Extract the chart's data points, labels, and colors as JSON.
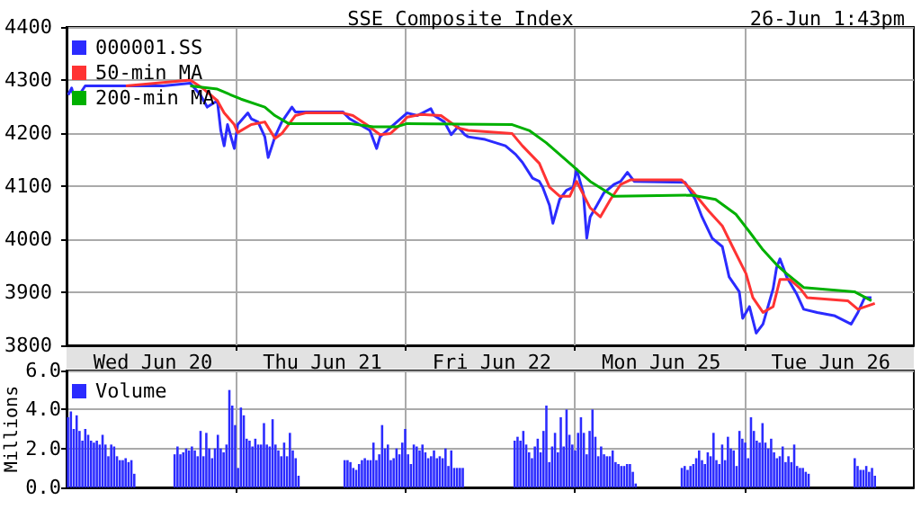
{
  "chart_data": [
    {
      "type": "line",
      "title": "SSE Composite Index",
      "subtitle": "26-Jun 1:43pm",
      "legend": "top left",
      "grid": true,
      "categories": [
        null,
        null,
        null,
        null,
        null,
        null,
        null,
        null,
        null,
        null,
        null,
        null,
        null,
        null,
        null,
        null,
        null,
        null,
        null,
        null,
        null,
        null,
        null,
        null,
        null,
        "Wed Jun 20",
        null,
        null,
        null,
        null,
        null,
        null,
        null,
        null,
        null,
        null,
        null,
        null,
        null,
        null,
        null,
        null,
        null,
        null,
        null,
        null,
        null,
        null,
        null,
        null,
        null,
        null,
        null,
        null,
        null,
        null,
        null,
        null,
        null,
        null,
        null,
        null,
        null,
        null,
        null,
        null,
        null,
        null,
        null,
        null,
        null,
        null,
        null,
        null,
        null,
        "Thu Jun 21",
        null,
        null,
        null,
        null,
        null,
        null,
        null,
        null,
        null,
        null,
        null,
        null,
        null,
        null,
        null,
        null,
        null,
        null,
        null,
        null,
        null,
        null,
        null,
        null,
        null,
        null,
        null,
        null,
        null,
        null,
        null,
        null,
        null,
        null,
        null,
        null,
        null,
        null,
        null,
        null,
        null,
        null,
        null,
        null,
        null,
        null,
        null,
        null,
        null,
        "Fri Jun 22",
        null,
        null,
        null,
        null,
        null,
        null,
        null,
        null,
        null,
        null,
        null,
        null,
        null,
        null,
        null,
        null,
        null,
        null,
        null,
        null,
        null,
        null,
        null,
        null,
        null,
        null,
        null,
        null,
        null,
        null,
        null,
        null,
        null,
        null,
        null,
        null,
        null,
        null,
        null,
        null,
        null,
        null,
        null,
        null,
        null,
        null,
        null,
        null,
        null,
        "Mon Jun 25",
        null,
        null,
        null,
        null,
        null,
        null,
        null,
        null,
        null,
        null,
        null,
        null,
        null,
        null,
        null,
        null,
        null,
        null,
        null,
        null,
        null,
        null,
        null,
        null,
        null,
        null,
        null,
        null,
        null,
        null,
        null,
        null,
        null,
        null,
        null,
        null,
        null,
        null,
        null,
        null,
        null,
        null,
        null,
        null,
        null,
        null,
        null,
        null,
        null,
        "Tue Jun 26",
        null,
        null,
        null,
        null,
        null,
        null,
        null,
        null,
        null,
        null,
        null,
        null,
        null,
        null,
        null,
        null,
        null,
        null,
        null,
        null,
        null,
        null,
        null,
        null
      ],
      "ylim": [
        3800,
        4400
      ],
      "yticks": [
        3800,
        3900,
        4000,
        4100,
        4200,
        4300,
        4400
      ],
      "series": [
        {
          "name": "000001.SS",
          "color": "#2b2bff",
          "values": [
            4272,
            4285,
            4260,
            null,
            null,
            4289,
            null,
            null,
            null,
            null,
            null,
            null,
            null,
            null,
            null,
            null,
            null,
            null,
            null,
            null,
            null,
            null,
            null,
            null,
            null,
            null,
            null,
            null,
            4289,
            null,
            null,
            null,
            null,
            null,
            null,
            null,
            4294,
            null,
            null,
            4272,
            null,
            4249,
            null,
            null,
            4261,
            4205,
            4176,
            4216,
            null,
            4171,
            4216,
            null,
            null,
            4238,
            4227,
            null,
            4221,
            null,
            4193,
            4154,
            null,
            4193,
            null,
            4221,
            null,
            null,
            4249,
            4240,
            null,
            null,
            null,
            null,
            null,
            null,
            null,
            null,
            null,
            null,
            null,
            null,
            null,
            4240,
            null,
            4227,
            null,
            null,
            4216,
            null,
            null,
            4205,
            null,
            4171,
            4193,
            null,
            null,
            4210,
            null,
            null,
            4227,
            null,
            4238,
            null,
            null,
            4233,
            null,
            null,
            null,
            4246,
            4233,
            null,
            null,
            4221,
            null,
            4197,
            null,
            4212,
            null,
            4197,
            4193,
            null,
            null,
            null,
            null,
            4188,
            null,
            null,
            null,
            null,
            null,
            4176,
            null,
            null,
            4160,
            null,
            4145,
            null,
            null,
            4115,
            null,
            4109,
            4098,
            null,
            4064,
            4030,
            null,
            4075,
            null,
            4092,
            null,
            4098,
            4132,
            null,
            4087,
            4002,
            4042,
            null,
            4064,
            null,
            4087,
            null,
            null,
            4103,
            null,
            4109,
            null,
            4126,
            null,
            4109,
            null,
            null,
            null,
            null,
            null,
            null,
            null,
            null,
            null,
            null,
            null,
            null,
            null,
            null,
            4107,
            null,
            null,
            4075,
            null,
            4042,
            null,
            null,
            4002,
            null,
            null,
            3986,
            null,
            3929,
            null,
            null,
            3901,
            3851,
            null,
            3873,
            null,
            3823,
            null,
            3840,
            null,
            null,
            3907,
            3946,
            3963,
            null,
            3929,
            null,
            null,
            3896,
            null,
            3868,
            null,
            null,
            null,
            3862,
            null,
            null,
            null,
            null,
            3856,
            null,
            null,
            null,
            null,
            3840,
            null,
            3862,
            null,
            3890,
            null,
            3890,
            null,
            null,
            null,
            null,
            null,
            null,
            null,
            null,
            null,
            null,
            null,
            null
          ]
        },
        {
          "name": "50-min MA",
          "color": "#ff3333",
          "values": [
            null,
            null,
            null,
            null,
            null,
            null,
            null,
            null,
            null,
            null,
            null,
            null,
            null,
            null,
            null,
            null,
            null,
            4289,
            null,
            null,
            null,
            null,
            null,
            null,
            null,
            null,
            null,
            null,
            null,
            null,
            null,
            null,
            null,
            null,
            null,
            null,
            4300,
            null,
            null,
            null,
            4283,
            null,
            null,
            null,
            4261,
            null,
            4238,
            null,
            null,
            4216,
            4201,
            null,
            null,
            null,
            4216,
            null,
            null,
            null,
            4221,
            null,
            null,
            4190,
            null,
            4199,
            null,
            null,
            null,
            4233,
            null,
            null,
            4238,
            null,
            null,
            null,
            null,
            null,
            null,
            null,
            null,
            null,
            null,
            4238,
            null,
            null,
            4233,
            null,
            null,
            null,
            4216,
            null,
            null,
            null,
            4197,
            null,
            null,
            4199,
            null,
            null,
            4216,
            null,
            4230,
            null,
            null,
            null,
            4235,
            null,
            null,
            null,
            null,
            null,
            4233,
            null,
            null,
            null,
            null,
            4210,
            null,
            null,
            4205,
            null,
            null,
            null,
            null,
            null,
            null,
            null,
            null,
            null,
            null,
            null,
            null,
            4199,
            null,
            null,
            4176,
            null,
            null,
            null,
            null,
            4143,
            null,
            null,
            4098,
            null,
            null,
            4081,
            null,
            null,
            4081,
            null,
            4109,
            null,
            null,
            null,
            4059,
            null,
            null,
            4042,
            null,
            null,
            4075,
            null,
            null,
            4103,
            null,
            null,
            4112,
            null,
            null,
            null,
            null,
            null,
            null,
            null,
            null,
            null,
            null,
            null,
            null,
            null,
            null,
            4112,
            null,
            null,
            4092,
            null,
            null,
            null,
            null,
            4053,
            null,
            null,
            null,
            4025,
            null,
            null,
            3986,
            null,
            null,
            null,
            3935,
            null,
            3890,
            null,
            null,
            3862,
            null,
            null,
            3873,
            null,
            3924,
            null,
            null,
            3924,
            null,
            null,
            3907,
            null,
            3890,
            null,
            null,
            null,
            null,
            null,
            null,
            null,
            null,
            null,
            null,
            null,
            3884,
            null,
            null,
            3868,
            null,
            null,
            null,
            null,
            3879,
            null,
            null,
            null,
            null,
            null,
            null,
            null,
            null,
            null,
            null,
            null
          ]
        },
        {
          "name": "200-min MA",
          "color": "#00b000",
          "values": [
            null,
            null,
            null,
            null,
            null,
            null,
            null,
            null,
            null,
            null,
            null,
            null,
            null,
            null,
            null,
            null,
            null,
            null,
            null,
            null,
            null,
            null,
            null,
            null,
            null,
            null,
            null,
            null,
            null,
            null,
            null,
            null,
            null,
            null,
            null,
            null,
            4289,
            null,
            null,
            null,
            null,
            null,
            null,
            null,
            4283,
            null,
            null,
            null,
            4272,
            null,
            null,
            4264,
            null,
            null,
            null,
            null,
            null,
            null,
            4249,
            null,
            null,
            4233,
            null,
            null,
            null,
            4218,
            null,
            null,
            null,
            null,
            null,
            null,
            null,
            null,
            null,
            null,
            null,
            null,
            null,
            null,
            null,
            null,
            null,
            4218,
            null,
            null,
            null,
            null,
            null,
            null,
            4212,
            null,
            null,
            null,
            null,
            null,
            null,
            4212,
            null,
            null,
            4218,
            null,
            null,
            null,
            null,
            null,
            null,
            null,
            null,
            null,
            null,
            null,
            null,
            null,
            null,
            null,
            null,
            null,
            null,
            null,
            null,
            null,
            null,
            null,
            null,
            null,
            null,
            null,
            null,
            null,
            null,
            4216,
            null,
            null,
            null,
            null,
            4205,
            null,
            null,
            null,
            null,
            4182,
            null,
            null,
            null,
            null,
            null,
            null,
            4143,
            null,
            null,
            null,
            null,
            null,
            4109,
            null,
            null,
            null,
            null,
            null,
            null,
            4081,
            null,
            null,
            null,
            null,
            null,
            null,
            null,
            null,
            null,
            null,
            null,
            null,
            null,
            null,
            null,
            null,
            null,
            null,
            null,
            null,
            null,
            null,
            4083,
            null,
            null,
            null,
            null,
            null,
            null,
            4075,
            null,
            null,
            null,
            null,
            null,
            4047,
            null,
            null,
            null,
            4014,
            null,
            null,
            null,
            3980,
            null,
            null,
            null,
            3952,
            null,
            null,
            3935,
            null,
            null,
            null,
            null,
            3909,
            null,
            null,
            null,
            null,
            null,
            null,
            null,
            null,
            null,
            null,
            null,
            null,
            null,
            null,
            3901,
            null,
            null,
            null,
            null,
            3884,
            null,
            null,
            null,
            null,
            null,
            null,
            null,
            null,
            null,
            null,
            null,
            null
          ]
        }
      ]
    },
    {
      "type": "bar",
      "ylabel": "Millions",
      "legend": "top left",
      "grid": true,
      "tick_labels": "y",
      "categories": [
        null,
        null,
        null,
        null,
        null,
        null,
        null,
        null,
        null,
        null,
        null,
        null,
        null,
        null,
        null,
        null,
        null,
        null,
        null,
        null,
        null,
        null,
        null,
        null,
        null,
        null,
        null,
        null,
        null,
        null,
        null,
        null,
        null,
        null,
        null,
        null,
        null,
        null,
        null,
        null,
        null,
        null,
        null,
        null,
        null,
        null,
        null,
        null,
        null,
        null,
        null,
        null,
        null,
        null,
        null,
        null,
        null,
        null,
        null,
        null,
        null,
        null,
        null,
        null,
        null,
        null,
        null,
        null,
        null,
        null,
        null,
        null,
        null,
        null,
        null,
        null,
        null,
        null,
        null,
        null,
        null,
        null,
        null,
        null,
        null,
        null,
        null,
        null,
        null,
        null,
        null,
        null,
        null,
        null,
        null,
        null,
        null,
        null,
        null,
        null,
        null,
        null,
        null,
        null,
        null,
        null,
        null,
        null,
        null,
        null,
        null,
        null,
        null,
        null,
        null,
        null,
        null,
        null,
        null,
        null,
        null,
        null,
        null,
        null,
        null,
        null,
        null,
        null,
        null,
        null,
        null,
        null,
        null,
        null,
        null,
        null,
        null,
        null,
        null,
        null,
        null,
        null,
        null,
        null,
        null,
        null,
        null,
        null,
        null,
        null,
        null,
        null,
        null,
        null,
        null,
        null,
        null,
        null,
        null,
        null,
        null,
        null,
        null,
        null,
        null,
        null,
        null,
        null,
        null,
        null,
        null,
        null,
        null,
        null,
        null,
        null,
        null,
        null,
        null,
        null,
        null,
        null,
        null,
        null,
        null,
        null,
        null,
        null,
        null,
        null,
        null,
        null,
        null,
        null,
        null,
        null,
        null,
        null,
        null,
        null,
        null,
        null,
        null,
        null,
        null,
        null,
        null,
        null,
        null,
        null,
        null,
        null,
        null,
        null,
        null,
        null,
        null,
        null,
        null,
        null,
        null,
        null,
        null,
        null,
        null,
        null,
        null,
        null,
        null,
        null,
        null,
        null,
        null,
        null,
        null,
        null,
        null,
        null,
        null,
        null,
        null,
        null,
        null,
        null,
        null,
        null,
        null,
        null,
        null,
        null,
        null,
        null,
        null,
        null,
        null,
        null,
        null,
        null,
        null,
        null,
        null,
        null,
        null,
        null,
        null,
        null,
        null,
        null,
        null,
        null,
        null,
        null,
        null,
        null,
        null,
        null,
        null,
        null,
        null,
        null,
        null,
        null,
        null,
        null,
        null,
        null,
        null,
        null,
        null,
        null,
        null,
        null,
        null,
        null
      ],
      "ylim": [
        0,
        6
      ],
      "yticks": [
        {
          "value": 0,
          "label": "0.0"
        },
        {
          "value": 2,
          "label": "2.0"
        },
        {
          "value": 4,
          "label": "4.0"
        },
        {
          "value": 6,
          "label": "6.0"
        }
      ],
      "series": [
        {
          "name": "Volume",
          "color": "#2b2bff",
          "values": [
            3.6,
            3.9,
            3.0,
            3.7,
            2.9,
            2.4,
            3.0,
            2.7,
            2.4,
            2.3,
            2.4,
            2.2,
            2.7,
            2.2,
            1.6,
            2.2,
            2.1,
            1.6,
            1.4,
            1.4,
            1.5,
            1.3,
            1.4,
            0.7,
            null,
            null,
            null,
            null,
            null,
            null,
            null,
            null,
            null,
            null,
            null,
            null,
            null,
            1.7,
            2.1,
            1.7,
            1.8,
            2.0,
            1.9,
            2.1,
            1.9,
            1.6,
            2.9,
            1.6,
            2.8,
            2.0,
            1.5,
            2.0,
            2.7,
            2.0,
            1.8,
            2.2,
            5.0,
            4.2,
            3.2,
            1.0,
            4.1,
            3.7,
            2.5,
            2.4,
            2.1,
            2.5,
            2.2,
            2.2,
            3.3,
            2.2,
            2.1,
            3.5,
            2.2,
            1.9,
            1.6,
            2.3,
            1.6,
            2.8,
            1.9,
            1.5,
            0.6,
            null,
            null,
            null,
            null,
            null,
            null,
            null,
            null,
            null,
            null,
            null,
            null,
            null,
            null,
            null,
            1.4,
            1.4,
            1.3,
            1.0,
            0.9,
            1.2,
            1.4,
            1.5,
            1.4,
            1.4,
            2.3,
            1.4,
            1.7,
            3.2,
            2.0,
            2.2,
            1.4,
            1.5,
            2.0,
            1.7,
            2.3,
            3.0,
            1.7,
            1.2,
            2.2,
            2.1,
            1.9,
            2.2,
            1.8,
            1.5,
            1.6,
            1.9,
            1.5,
            1.6,
            1.5,
            2.0,
            1.1,
            1.9,
            1.0,
            1.0,
            1.0,
            1.0,
            null,
            null,
            null,
            null,
            null,
            null,
            null,
            null,
            null,
            null,
            null,
            null,
            null,
            null,
            null,
            null,
            null,
            2.4,
            2.6,
            2.4,
            2.9,
            2.2,
            1.8,
            1.5,
            2.1,
            2.5,
            1.8,
            2.9,
            4.2,
            1.3,
            2.1,
            2.8,
            1.8,
            3.6,
            2.1,
            4.0,
            2.7,
            2.2,
            1.9,
            2.8,
            3.6,
            2.8,
            1.7,
            2.9,
            4.0,
            2.6,
            1.6,
            2.1,
            1.7,
            1.6,
            1.6,
            1.9,
            1.3,
            1.2,
            1.1,
            1.1,
            1.2,
            1.2,
            0.8,
            0.2,
            null,
            null,
            null,
            null,
            null,
            null,
            null,
            null,
            null,
            null,
            null,
            null,
            null,
            null,
            null,
            1.0,
            1.1,
            0.9,
            1.1,
            1.2,
            1.5,
            1.9,
            1.4,
            1.2,
            1.8,
            1.6,
            2.8,
            1.4,
            1.2,
            2.2,
            1.4,
            2.6,
            2.0,
            1.9,
            1.1,
            2.9,
            2.5,
            2.3,
            1.5,
            3.6,
            2.9,
            2.4,
            2.3,
            3.3,
            2.3,
            2.0,
            2.5,
            1.8,
            1.5,
            1.6,
            2.1,
            1.3,
            1.6,
            1.3,
            2.2,
            1.1,
            1.0,
            1.0,
            0.8,
            0.7,
            null,
            null,
            null,
            null,
            null,
            null,
            null,
            null,
            null,
            null,
            null,
            null,
            null,
            null,
            null,
            1.5,
            1.1,
            0.9,
            0.9,
            1.1,
            0.8,
            1.0,
            0.6,
            null,
            null,
            null,
            null,
            null,
            null,
            null,
            null,
            null,
            null,
            null,
            null,
            null
          ]
        }
      ]
    }
  ]
}
